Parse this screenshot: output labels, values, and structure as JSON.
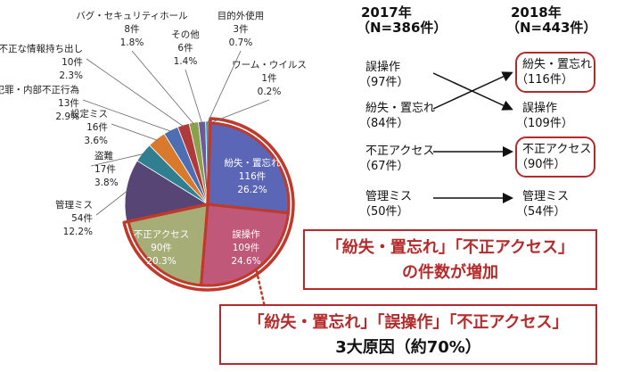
{
  "chart_data": {
    "type": "pie",
    "slices": [
      {
        "label": "紛失・置忘れ",
        "count": "116件",
        "pct": "26.2%",
        "value": 26.2,
        "color": "#5b67b6"
      },
      {
        "label": "誤操作",
        "count": "109件",
        "pct": "24.6%",
        "value": 24.6,
        "color": "#c0587a"
      },
      {
        "label": "不正アクセス",
        "count": "90件",
        "pct": "20.3%",
        "value": 20.3,
        "color": "#a7ad76"
      },
      {
        "label": "管理ミス",
        "count": "54件",
        "pct": "12.2%",
        "value": 12.2,
        "color": "#574576"
      },
      {
        "label": "盗難",
        "count": "17件",
        "pct": "3.8%",
        "value": 3.8,
        "color": "#2f7f90"
      },
      {
        "label": "設定ミス",
        "count": "16件",
        "pct": "3.6%",
        "value": 3.6,
        "color": "#d9792b"
      },
      {
        "label": "内部犯罪・内部不正行為",
        "count": "13件",
        "pct": "2.9%",
        "value": 2.9,
        "color": "#4d6eb2"
      },
      {
        "label": "不正な情報持ち出し",
        "count": "10件",
        "pct": "2.3%",
        "value": 2.3,
        "color": "#b03a3a"
      },
      {
        "label": "バグ・セキュリティホール",
        "count": "8件",
        "pct": "1.8%",
        "value": 1.8,
        "color": "#8aa04a"
      },
      {
        "label": "その他",
        "count": "6件",
        "pct": "1.4%",
        "value": 1.4,
        "color": "#6d5a98"
      },
      {
        "label": "目的外使用",
        "count": "3件",
        "pct": "0.7%",
        "value": 0.7,
        "color": "#33a3bf"
      },
      {
        "label": "ワーム・ウイルス",
        "count": "1件",
        "pct": "0.2%",
        "value": 0.2,
        "color": "#e8a53a"
      }
    ],
    "highlighted": [
      "紛失・置忘れ",
      "誤操作",
      "不正アクセス"
    ]
  },
  "ranking": {
    "left_header": {
      "year": "2017年",
      "n": "（N=386件）"
    },
    "right_header": {
      "year": "2018年",
      "n": "（N=443件）"
    },
    "left": [
      {
        "label": "誤操作",
        "count": "（97件）"
      },
      {
        "label": "紛失・置忘れ",
        "count": "（84件）"
      },
      {
        "label": "不正アクセス",
        "count": "（67件）"
      },
      {
        "label": "管理ミス",
        "count": "（50件）"
      }
    ],
    "right": [
      {
        "label": "紛失・置忘れ",
        "count": "（116件）"
      },
      {
        "label": "誤操作",
        "count": "（109件）"
      },
      {
        "label": "不正アクセス",
        "count": "（90件）"
      },
      {
        "label": "管理ミス",
        "count": "（54件）"
      }
    ]
  },
  "callouts": {
    "increase": {
      "line1": "「紛失・置忘れ」「不正アクセス」",
      "line2": "の件数が増加"
    },
    "causes": {
      "line1": "「紛失・置忘れ」「誤操作」「不正アクセス」",
      "line2": "3大原因（約70%）"
    }
  },
  "colors": {
    "accent_red": "#b52a2a",
    "ring_red": "#c0392b"
  }
}
